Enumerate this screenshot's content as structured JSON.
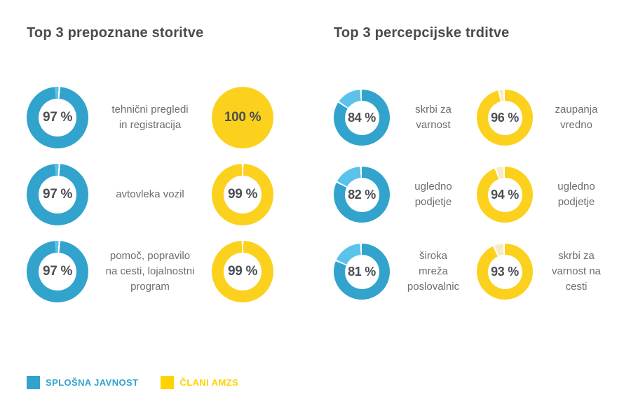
{
  "colors": {
    "blue": "#31A3CC",
    "blue_light": "#5BC2EB",
    "yellow": "#FCD11E",
    "yellow_light": "#F7EBC6",
    "separator": "#FFFFFF",
    "number": "#4D4E53",
    "label": "#6D6E71",
    "title": "#4B4B4E"
  },
  "legend": {
    "items": [
      {
        "label": "SPLOŠNA JAVNOST",
        "color": "#31A3CC"
      },
      {
        "label": "ČLANI AMZS",
        "color": "#FFD200"
      }
    ]
  },
  "chart_data": [
    {
      "type": "donut",
      "title": "Top 3 prepoznane storitve",
      "unit": "%",
      "series": [
        "SPLOŠNA JAVNOST",
        "ČLANI AMZS"
      ],
      "legend_position": "bottom-left",
      "rows": [
        {
          "label": "tehnični pregledi\nin registracija",
          "public": 97,
          "public_display": "97 %",
          "members": 100,
          "members_display": "100 %"
        },
        {
          "label": "avtovleka vozil",
          "public": 97,
          "public_display": "97 %",
          "members": 99,
          "members_display": "99 %"
        },
        {
          "label": "pomoč, popravilo\nna cesti, lojalnostni\nprogram",
          "public": 97,
          "public_display": "97 %",
          "members": 99,
          "members_display": "99 %"
        }
      ]
    },
    {
      "type": "donut",
      "title": "Top 3 percepcijske trditve",
      "unit": "%",
      "series": [
        "SPLOŠNA JAVNOST",
        "ČLANI AMZS"
      ],
      "legend_position": "bottom-left",
      "rows": [
        {
          "public": 84,
          "public_display": "84 %",
          "public_label": "skrbi za\nvarnost",
          "members": 96,
          "members_display": "96 %",
          "members_label": "zaupanja\nvredno"
        },
        {
          "public": 82,
          "public_display": "82 %",
          "public_label": "ugledno\npodjetje",
          "members": 94,
          "members_display": "94 %",
          "members_label": "ugledno\npodjetje"
        },
        {
          "public": 81,
          "public_display": "81 %",
          "public_label": "široka\nmreža\nposlovalnic",
          "members": 93,
          "members_display": "93 %",
          "members_label": "skrbi za\nvarnost na\ncesti"
        }
      ]
    }
  ]
}
